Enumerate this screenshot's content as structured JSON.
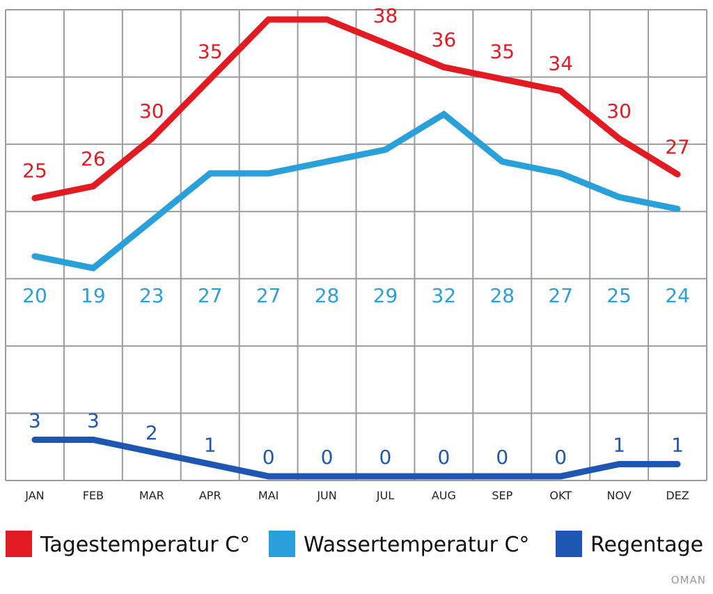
{
  "chart_data": {
    "type": "line",
    "categories": [
      "JAN",
      "FEB",
      "MAR",
      "APR",
      "MAI",
      "JUN",
      "JUL",
      "AUG",
      "SEP",
      "OKT",
      "NOV",
      "DEZ"
    ],
    "series": [
      {
        "name": "Tagestemperatur C°",
        "color": "#e21b22",
        "values": [
          25,
          26,
          30,
          35,
          40,
          40,
          38,
          36,
          35,
          34,
          30,
          27
        ]
      },
      {
        "name": "Wassertemperatur C°",
        "color": "#2aa0da",
        "values": [
          20,
          19,
          23,
          27,
          27,
          28,
          29,
          32,
          28,
          27,
          25,
          24
        ]
      },
      {
        "name": "Regentage",
        "color": "#1e56b3",
        "values": [
          3,
          3,
          2,
          1,
          0,
          0,
          0,
          0,
          0,
          0,
          1,
          1
        ]
      }
    ],
    "legend": [
      {
        "label": "Tagestemperatur C°",
        "color": "#e21b22"
      },
      {
        "label": "Wassertemperatur C°",
        "color": "#2aa0da"
      },
      {
        "label": "Regentage",
        "color": "#1e56b3"
      }
    ],
    "legend_position": "bottom",
    "grid": true,
    "watermark": "OMAN"
  }
}
